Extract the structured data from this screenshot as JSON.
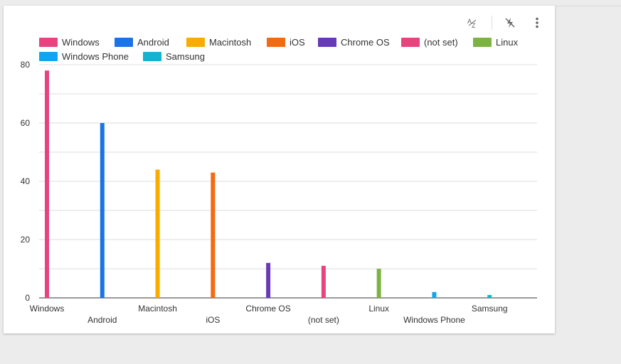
{
  "toolbar": {
    "sort_icon": "sort-az-icon",
    "pin_icon": "lightning-off-icon",
    "menu_icon": "more-vert-icon"
  },
  "chart_data": {
    "type": "bar",
    "categories": [
      "Windows",
      "Android",
      "Macintosh",
      "iOS",
      "Chrome OS",
      "(not set)",
      "Linux",
      "Windows Phone",
      "Samsung"
    ],
    "values": [
      78,
      60,
      44,
      43,
      12,
      11,
      10,
      2,
      1
    ],
    "colors": [
      "#e8437f",
      "#1a73e8",
      "#f9ab00",
      "#f26b12",
      "#673ab7",
      "#e8437f",
      "#7cb342",
      "#12a4f0",
      "#12b5cb"
    ],
    "legend": [
      "Windows",
      "Android",
      "Macintosh",
      "iOS",
      "Chrome OS",
      "(not set)",
      "Linux",
      "Windows Phone",
      "Samsung"
    ],
    "legend_position": "top",
    "yticks": [
      0,
      20,
      40,
      60,
      80
    ],
    "ylim": [
      0,
      80
    ],
    "grid": true
  }
}
